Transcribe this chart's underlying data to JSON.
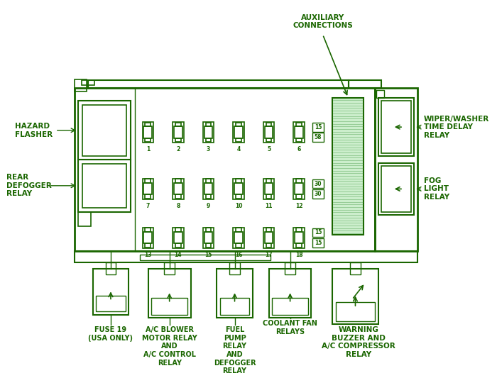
{
  "bg_color": "#ffffff",
  "dc": "#1a6600",
  "figsize": [
    7.0,
    5.33
  ],
  "dpi": 100,
  "labels": {
    "hazard_flasher": "HAZARD\nFLASHER",
    "rear_defogger": "REAR\nDEFOGGER\nRELAY",
    "auxiliary": "AUXILIARY\nCONNECTIONS",
    "wiper_washer": "WIPER/WASHER\nTIME DELAY\nRELAY",
    "fog_light": "FOG\nLIGHT\nRELAY",
    "fuse19": "FUSE 19\n(USA ONLY)",
    "ac_blower": "A/C BLOWER\nMOTOR RELAY\nAND\nA/C CONTROL\nRELAY",
    "fuel_pump": "FUEL\nPUMP\nRELAY\nAND\nDEFOGGER\nRELAY",
    "coolant_fan": "COOLANT FAN\nRELAYS",
    "warning_buzzer": "WARNING\nBUZZER AND\nA/C COMPRESSOR\nRELAY"
  },
  "fuse_row1": [
    "1",
    "2",
    "3",
    "4",
    "5",
    "6"
  ],
  "fuse_row2": [
    "7",
    "8",
    "9",
    "10",
    "11",
    "12"
  ],
  "fuse_row3": [
    "13",
    "14",
    "15",
    "16",
    "17",
    "18"
  ],
  "amp_row1": [
    "15",
    "58"
  ],
  "amp_row2": [
    "30",
    "30"
  ],
  "amp_row3": [
    "15",
    "15"
  ]
}
